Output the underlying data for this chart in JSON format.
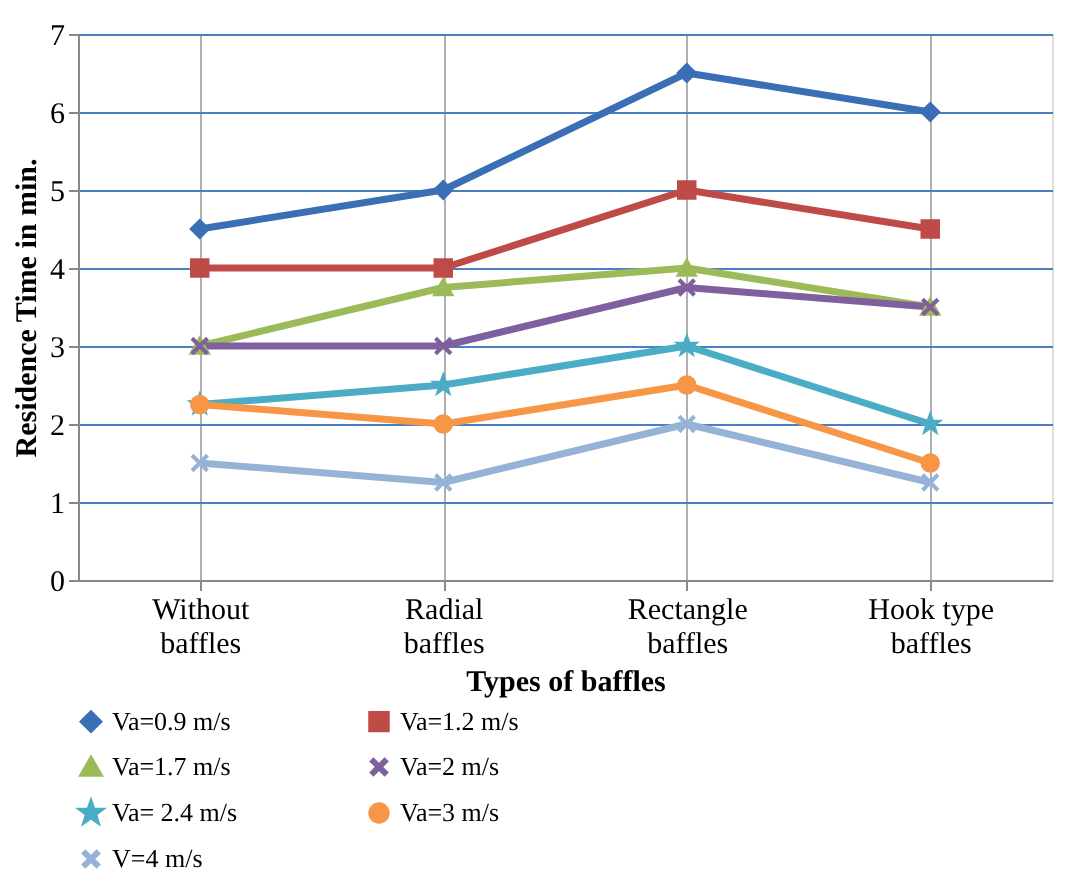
{
  "chart_data": {
    "type": "line",
    "xlabel": "Types of baffles",
    "ylabel": "Residence Time in min.",
    "categories": [
      "Without baffles",
      "Radial baffles",
      "Rectangle baffles",
      "Hook type baffles"
    ],
    "series": [
      {
        "name": "Va=0.9 m/s",
        "color": "#3a6eb5",
        "marker": "diamond",
        "values": [
          4.5,
          5,
          6.5,
          6
        ]
      },
      {
        "name": "Va=1.2 m/s",
        "color": "#be4b48",
        "marker": "square",
        "values": [
          4,
          4,
          5,
          4.5
        ]
      },
      {
        "name": "Va=1.7 m/s",
        "color": "#9bbb59",
        "marker": "triangle",
        "values": [
          3,
          3.75,
          4,
          3.5
        ]
      },
      {
        "name": "Va=2 m/s",
        "color": "#7f5f9e",
        "marker": "cross",
        "values": [
          3,
          3,
          3.75,
          3.5
        ]
      },
      {
        "name": "Va= 2.4 m/s",
        "color": "#4bacc6",
        "marker": "star",
        "values": [
          2.25,
          2.5,
          3,
          2
        ]
      },
      {
        "name": "Va=3 m/s",
        "color": "#f79646",
        "marker": "circle",
        "values": [
          2.25,
          2,
          2.5,
          1.5
        ]
      },
      {
        "name": "V=4 m/s",
        "color": "#95b3d7",
        "marker": "cross",
        "values": [
          1.5,
          1.25,
          2,
          1.25
        ]
      }
    ],
    "ylim": [
      0,
      7
    ],
    "yticks": [
      0,
      1,
      2,
      3,
      4,
      5,
      6,
      7
    ],
    "grid": true,
    "legend": "bottom",
    "line_style": "solid"
  }
}
